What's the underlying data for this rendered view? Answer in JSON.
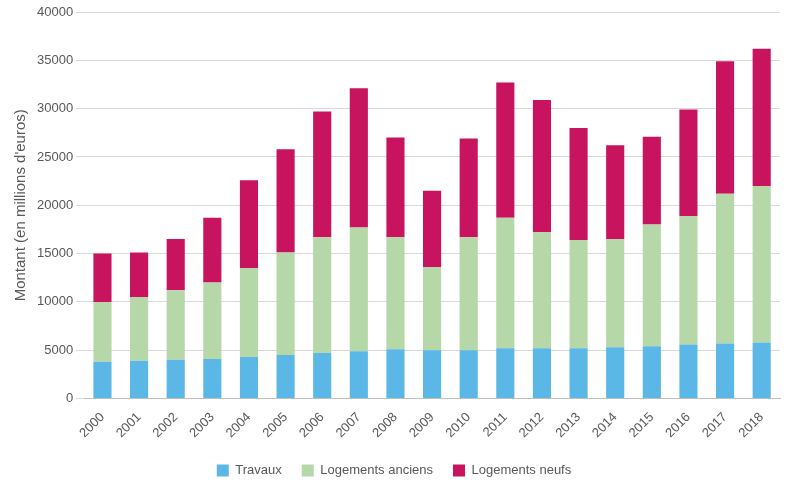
{
  "chart_data": {
    "type": "bar",
    "y_label": "Montant (en millions d'euros)",
    "categories": [
      "2000",
      "2001",
      "2002",
      "2003",
      "2004",
      "2005",
      "2006",
      "2007",
      "2008",
      "2009",
      "2010",
      "2011",
      "2012",
      "2013",
      "2014",
      "2015",
      "2016",
      "2017",
      "2018"
    ],
    "series": [
      {
        "name": "Travaux",
        "color": "#5bb7e5",
        "values": [
          3800,
          3900,
          4000,
          4100,
          4300,
          4500,
          4700,
          4900,
          5100,
          5000,
          5000,
          5200,
          5200,
          5200,
          5300,
          5400,
          5600,
          5700,
          5800
        ]
      },
      {
        "name": "Logements anciens",
        "color": "#b6d7a8",
        "values": [
          6200,
          6600,
          7200,
          7900,
          9200,
          10600,
          12000,
          12800,
          11600,
          8600,
          11700,
          13500,
          12000,
          11200,
          11200,
          12600,
          13300,
          15500,
          16200
        ]
      },
      {
        "name": "Logements neufs",
        "color": "#c8135f",
        "values": [
          5000,
          4600,
          5300,
          6700,
          9100,
          10700,
          13000,
          14400,
          10300,
          7900,
          10200,
          14000,
          13700,
          11600,
          9700,
          9100,
          11000,
          13700,
          14200
        ]
      }
    ],
    "stacked": true,
    "ylim": [
      0,
      40000
    ],
    "yticks": [
      0,
      5000,
      10000,
      15000,
      20000,
      25000,
      30000,
      35000,
      40000
    ],
    "grid": true,
    "legend": "bottom"
  }
}
